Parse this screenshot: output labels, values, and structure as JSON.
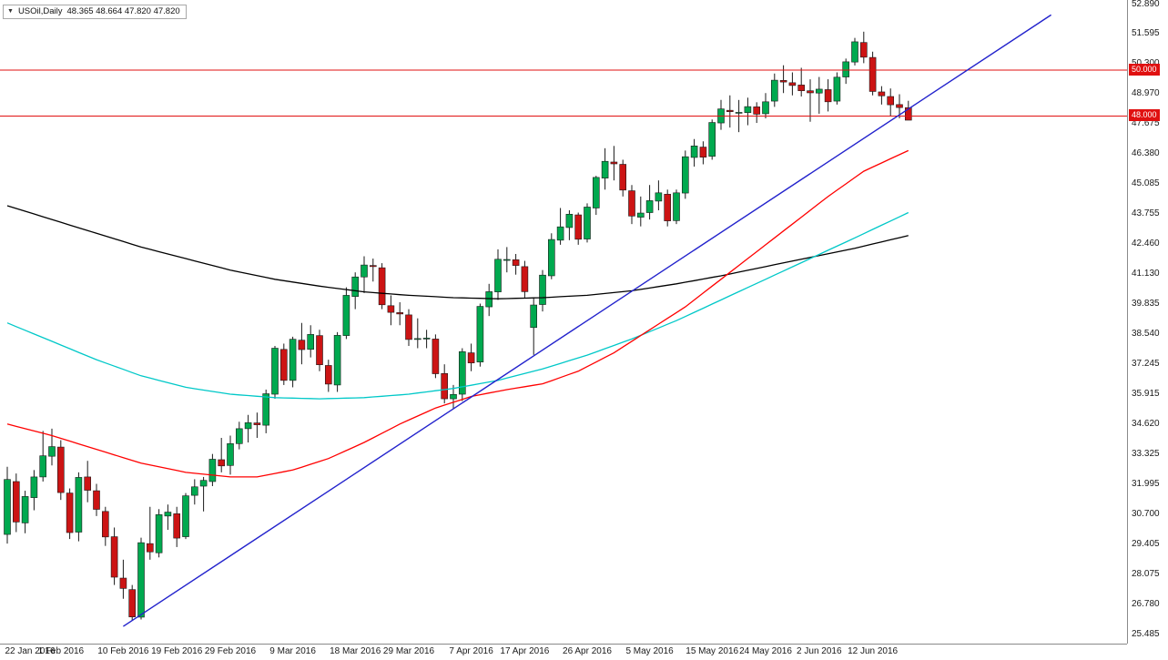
{
  "header": {
    "symbol": "USOil,Daily",
    "quotes": "48.365 48.664 47.820 47.820"
  },
  "chart_data": {
    "type": "candlestick",
    "symbol": "USOil",
    "timeframe": "Daily",
    "current_bar": {
      "open": 48.365,
      "high": 48.664,
      "low": 47.82,
      "close": 47.82
    },
    "y_axis": {
      "min": 25.485,
      "max": 52.89,
      "ticks": [
        52.89,
        51.595,
        50.3,
        48.97,
        47.675,
        46.38,
        45.085,
        43.755,
        42.46,
        41.13,
        39.835,
        38.54,
        37.245,
        35.915,
        34.62,
        33.325,
        31.995,
        30.7,
        29.405,
        28.075,
        26.78,
        25.485
      ]
    },
    "x_axis": {
      "labels": [
        {
          "index": 0,
          "text": "22 Jan 2016"
        },
        {
          "index": 6,
          "text": "1 Feb 2016"
        },
        {
          "index": 13,
          "text": "10 Feb 2016"
        },
        {
          "index": 19,
          "text": "19 Feb 2016"
        },
        {
          "index": 25,
          "text": "29 Feb 2016"
        },
        {
          "index": 32,
          "text": "9 Mar 2016"
        },
        {
          "index": 39,
          "text": "18 Mar 2016"
        },
        {
          "index": 45,
          "text": "29 Mar 2016"
        },
        {
          "index": 52,
          "text": "7 Apr 2016"
        },
        {
          "index": 58,
          "text": "17 Apr 2016"
        },
        {
          "index": 65,
          "text": "26 Apr 2016"
        },
        {
          "index": 72,
          "text": "5 May 2016"
        },
        {
          "index": 79,
          "text": "15 May 2016"
        },
        {
          "index": 85,
          "text": "24 May 2016"
        },
        {
          "index": 91,
          "text": "2 Jun 2016"
        },
        {
          "index": 97,
          "text": "12 Jun 2016"
        }
      ]
    },
    "horizontal_lines": [
      {
        "price": 50.0,
        "label": "50.000"
      },
      {
        "price": 48.0,
        "label": "48.000"
      }
    ],
    "trendline": {
      "from": {
        "index": 13,
        "price": 25.8
      },
      "to": {
        "index": 117,
        "price": 52.4
      }
    },
    "moving_averages": [
      {
        "name": "ma-black",
        "color": "#000000",
        "points": [
          [
            0,
            44.1
          ],
          [
            5,
            43.5
          ],
          [
            10,
            42.9
          ],
          [
            15,
            42.3
          ],
          [
            20,
            41.8
          ],
          [
            25,
            41.3
          ],
          [
            30,
            40.9
          ],
          [
            35,
            40.6
          ],
          [
            40,
            40.35
          ],
          [
            45,
            40.2
          ],
          [
            50,
            40.1
          ],
          [
            55,
            40.05
          ],
          [
            60,
            40.1
          ],
          [
            65,
            40.2
          ],
          [
            70,
            40.4
          ],
          [
            75,
            40.7
          ],
          [
            80,
            41.05
          ],
          [
            85,
            41.45
          ],
          [
            90,
            41.85
          ],
          [
            95,
            42.25
          ],
          [
            101,
            42.8
          ]
        ]
      },
      {
        "name": "ma-cyan",
        "color": "#00c8c8",
        "points": [
          [
            0,
            39.0
          ],
          [
            5,
            38.2
          ],
          [
            10,
            37.4
          ],
          [
            15,
            36.7
          ],
          [
            20,
            36.2
          ],
          [
            25,
            35.9
          ],
          [
            30,
            35.75
          ],
          [
            35,
            35.7
          ],
          [
            40,
            35.75
          ],
          [
            45,
            35.9
          ],
          [
            50,
            36.15
          ],
          [
            55,
            36.5
          ],
          [
            60,
            37.0
          ],
          [
            65,
            37.6
          ],
          [
            70,
            38.3
          ],
          [
            75,
            39.1
          ],
          [
            80,
            40.0
          ],
          [
            85,
            40.9
          ],
          [
            90,
            41.8
          ],
          [
            95,
            42.7
          ],
          [
            101,
            43.8
          ]
        ]
      },
      {
        "name": "ma-red",
        "color": "#ff0000",
        "points": [
          [
            0,
            34.6
          ],
          [
            5,
            34.1
          ],
          [
            10,
            33.5
          ],
          [
            15,
            32.9
          ],
          [
            20,
            32.5
          ],
          [
            25,
            32.3
          ],
          [
            28,
            32.3
          ],
          [
            32,
            32.6
          ],
          [
            36,
            33.1
          ],
          [
            40,
            33.8
          ],
          [
            44,
            34.6
          ],
          [
            48,
            35.3
          ],
          [
            52,
            35.8
          ],
          [
            56,
            36.1
          ],
          [
            60,
            36.35
          ],
          [
            64,
            36.9
          ],
          [
            68,
            37.7
          ],
          [
            72,
            38.7
          ],
          [
            76,
            39.7
          ],
          [
            80,
            40.9
          ],
          [
            84,
            42.1
          ],
          [
            88,
            43.3
          ],
          [
            92,
            44.5
          ],
          [
            96,
            45.6
          ],
          [
            101,
            46.5
          ]
        ]
      }
    ],
    "candle_columns": [
      "date",
      "open",
      "high",
      "low",
      "close"
    ],
    "candles": [
      [
        "2016.01.22",
        29.8,
        32.74,
        29.4,
        32.19
      ],
      [
        "2016.01.25",
        32.1,
        32.45,
        29.9,
        30.34
      ],
      [
        "2016.01.26",
        30.3,
        31.7,
        29.85,
        31.45
      ],
      [
        "2016.01.27",
        31.4,
        32.6,
        30.85,
        32.3
      ],
      [
        "2016.01.28",
        32.3,
        34.3,
        32.1,
        33.22
      ],
      [
        "2016.01.29",
        33.2,
        34.4,
        32.8,
        33.62
      ],
      [
        "2016.02.01",
        33.6,
        33.9,
        31.3,
        31.62
      ],
      [
        "2016.02.02",
        31.6,
        31.8,
        29.6,
        29.88
      ],
      [
        "2016.02.03",
        29.9,
        32.5,
        29.5,
        32.28
      ],
      [
        "2016.02.04",
        32.3,
        33.0,
        31.2,
        31.72
      ],
      [
        "2016.02.05",
        31.7,
        32.0,
        30.6,
        30.89
      ],
      [
        "2016.02.08",
        30.8,
        31.0,
        29.3,
        29.69
      ],
      [
        "2016.02.09",
        29.7,
        30.1,
        27.6,
        27.94
      ],
      [
        "2016.02.10",
        27.9,
        28.7,
        27.0,
        27.45
      ],
      [
        "2016.02.11",
        27.4,
        27.6,
        26.05,
        26.21
      ],
      [
        "2016.02.12",
        26.2,
        29.66,
        26.1,
        29.44
      ],
      [
        "2016.02.16",
        29.4,
        31.0,
        28.7,
        29.04
      ],
      [
        "2016.02.17",
        29.0,
        30.9,
        28.8,
        30.66
      ],
      [
        "2016.02.18",
        30.6,
        31.1,
        30.0,
        30.77
      ],
      [
        "2016.02.19",
        30.7,
        31.0,
        29.25,
        29.64
      ],
      [
        "2016.02.22",
        29.7,
        31.6,
        29.6,
        31.48
      ],
      [
        "2016.02.23",
        31.5,
        32.2,
        31.1,
        31.87
      ],
      [
        "2016.02.24",
        31.9,
        32.3,
        30.8,
        32.15
      ],
      [
        "2016.02.25",
        32.1,
        33.3,
        31.9,
        33.07
      ],
      [
        "2016.02.26",
        33.05,
        34.0,
        32.5,
        32.78
      ],
      [
        "2016.02.29",
        32.8,
        34.1,
        32.4,
        33.75
      ],
      [
        "2016.03.01",
        33.75,
        34.7,
        33.5,
        34.4
      ],
      [
        "2016.03.02",
        34.4,
        35.0,
        33.8,
        34.66
      ],
      [
        "2016.03.03",
        34.65,
        35.1,
        34.0,
        34.57
      ],
      [
        "2016.03.04",
        34.55,
        36.1,
        34.2,
        35.92
      ],
      [
        "2016.03.07",
        35.9,
        38.0,
        35.7,
        37.9
      ],
      [
        "2016.03.08",
        37.85,
        38.1,
        36.3,
        36.5
      ],
      [
        "2016.03.09",
        36.5,
        38.4,
        36.2,
        38.29
      ],
      [
        "2016.03.10",
        38.25,
        39.0,
        37.2,
        37.84
      ],
      [
        "2016.03.11",
        37.85,
        38.9,
        37.5,
        38.5
      ],
      [
        "2016.03.14",
        38.45,
        38.7,
        36.9,
        37.18
      ],
      [
        "2016.03.15",
        37.15,
        37.4,
        36.0,
        36.34
      ],
      [
        "2016.03.16",
        36.3,
        38.6,
        36.0,
        38.46
      ],
      [
        "2016.03.17",
        38.45,
        40.55,
        38.3,
        40.2
      ],
      [
        "2016.03.18",
        40.15,
        41.2,
        39.6,
        41.0
      ],
      [
        "2016.03.21",
        41.0,
        41.9,
        40.3,
        41.52
      ],
      [
        "2016.03.22",
        41.5,
        41.8,
        40.8,
        41.45
      ],
      [
        "2016.03.23",
        41.4,
        41.6,
        39.6,
        39.79
      ],
      [
        "2016.03.24",
        39.75,
        40.2,
        38.9,
        39.46
      ],
      [
        "2016.03.28",
        39.45,
        39.9,
        38.9,
        39.39
      ],
      [
        "2016.03.29",
        39.35,
        39.6,
        38.0,
        38.28
      ],
      [
        "2016.03.30",
        38.3,
        39.2,
        37.9,
        38.32
      ],
      [
        "2016.03.31",
        38.3,
        38.7,
        37.9,
        38.34
      ],
      [
        "2016.04.01",
        38.3,
        38.5,
        36.6,
        36.79
      ],
      [
        "2016.04.04",
        36.8,
        37.2,
        35.5,
        35.7
      ],
      [
        "2016.04.05",
        35.7,
        36.3,
        35.25,
        35.89
      ],
      [
        "2016.04.06",
        35.9,
        37.9,
        35.6,
        37.75
      ],
      [
        "2016.04.07",
        37.7,
        38.1,
        36.9,
        37.26
      ],
      [
        "2016.04.08",
        37.3,
        39.84,
        37.1,
        39.72
      ],
      [
        "2016.04.11",
        39.7,
        40.7,
        39.3,
        40.36
      ],
      [
        "2016.04.12",
        40.35,
        42.2,
        40.0,
        41.77
      ],
      [
        "2016.04.13",
        41.75,
        42.3,
        41.2,
        41.76
      ],
      [
        "2016.04.14",
        41.75,
        42.0,
        41.1,
        41.5
      ],
      [
        "2016.04.15",
        41.45,
        41.7,
        40.1,
        40.36
      ],
      [
        "2016.04.18",
        38.8,
        40.1,
        37.61,
        39.78
      ],
      [
        "2016.04.19",
        39.8,
        41.3,
        39.5,
        41.08
      ],
      [
        "2016.04.20",
        41.05,
        42.9,
        40.9,
        42.63
      ],
      [
        "2016.04.21",
        42.6,
        44.0,
        42.4,
        43.18
      ],
      [
        "2016.04.22",
        43.15,
        43.9,
        42.6,
        43.73
      ],
      [
        "2016.04.25",
        43.7,
        43.8,
        42.4,
        42.64
      ],
      [
        "2016.04.26",
        42.65,
        44.2,
        42.5,
        44.04
      ],
      [
        "2016.04.27",
        44.0,
        45.4,
        43.7,
        45.33
      ],
      [
        "2016.04.28",
        45.3,
        46.6,
        44.8,
        46.03
      ],
      [
        "2016.04.29",
        46.0,
        46.7,
        45.2,
        45.92
      ],
      [
        "2016.05.02",
        45.9,
        46.1,
        44.5,
        44.78
      ],
      [
        "2016.05.03",
        44.75,
        45.0,
        43.3,
        43.65
      ],
      [
        "2016.05.04",
        43.6,
        44.5,
        43.2,
        43.78
      ],
      [
        "2016.05.05",
        43.8,
        45.0,
        43.5,
        44.32
      ],
      [
        "2016.05.06",
        44.3,
        45.2,
        43.9,
        44.66
      ],
      [
        "2016.05.09",
        44.6,
        44.8,
        43.2,
        43.44
      ],
      [
        "2016.05.10",
        43.45,
        44.8,
        43.3,
        44.66
      ],
      [
        "2016.05.11",
        44.65,
        46.5,
        44.4,
        46.23
      ],
      [
        "2016.05.12",
        46.2,
        47.0,
        45.8,
        46.7
      ],
      [
        "2016.05.13",
        46.65,
        46.9,
        45.9,
        46.21
      ],
      [
        "2016.05.16",
        46.25,
        47.85,
        46.1,
        47.72
      ],
      [
        "2016.05.17",
        47.7,
        48.7,
        47.4,
        48.31
      ],
      [
        "2016.05.18",
        48.25,
        48.9,
        47.5,
        48.19
      ],
      [
        "2016.05.19",
        48.15,
        48.7,
        47.3,
        48.16
      ],
      [
        "2016.05.20",
        48.15,
        48.8,
        47.6,
        48.41
      ],
      [
        "2016.05.23",
        48.4,
        48.6,
        47.7,
        48.08
      ],
      [
        "2016.05.24",
        48.1,
        49.0,
        47.9,
        48.62
      ],
      [
        "2016.05.25",
        48.65,
        49.85,
        48.4,
        49.56
      ],
      [
        "2016.05.26",
        49.55,
        50.21,
        49.0,
        49.48
      ],
      [
        "2016.05.27",
        49.45,
        49.9,
        48.9,
        49.33
      ],
      [
        "2016.05.31",
        49.35,
        50.1,
        48.85,
        49.1
      ],
      [
        "2016.06.01",
        49.1,
        49.6,
        47.75,
        49.01
      ],
      [
        "2016.06.02",
        49.0,
        49.7,
        48.1,
        49.17
      ],
      [
        "2016.06.03",
        49.15,
        49.6,
        48.2,
        48.62
      ],
      [
        "2016.06.06",
        48.65,
        49.9,
        48.5,
        49.69
      ],
      [
        "2016.06.07",
        49.7,
        50.5,
        49.4,
        50.36
      ],
      [
        "2016.06.08",
        50.35,
        51.4,
        50.2,
        51.23
      ],
      [
        "2016.06.09",
        51.2,
        51.67,
        50.3,
        50.56
      ],
      [
        "2016.06.10",
        50.55,
        50.8,
        48.9,
        49.07
      ],
      [
        "2016.06.13",
        49.05,
        49.3,
        48.5,
        48.88
      ],
      [
        "2016.06.14",
        48.85,
        49.2,
        48.0,
        48.49
      ],
      [
        "2016.06.15",
        48.5,
        48.95,
        47.9,
        48.37
      ],
      [
        "2016.06.16",
        48.365,
        48.664,
        47.82,
        47.82
      ]
    ],
    "colors": {
      "up_fill": "#00a94f",
      "down_fill": "#cc1414",
      "outline": "#1a1a1a",
      "wick": "#1a1a1a",
      "hline": "#e01010",
      "trendline": "#2222cc",
      "badge_bg": "#e01010",
      "badge_text": "#ffffff"
    }
  }
}
